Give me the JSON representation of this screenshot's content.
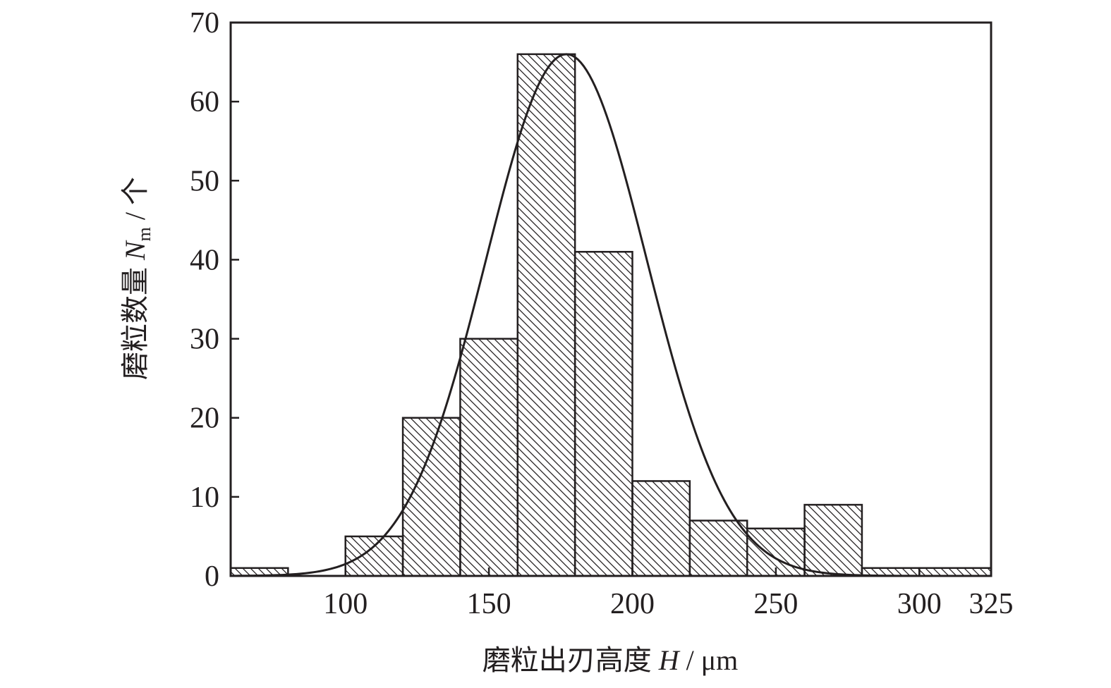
{
  "chart_data": {
    "type": "bar",
    "subtype": "histogram-with-normal-fit",
    "title": "",
    "xlabel": {
      "prefix": "磨粒出刃高度",
      "var": "H",
      "unit": " / μm"
    },
    "ylabel": {
      "prefix": "磨粒数量",
      "var": "N",
      "sub": "m",
      "unit": " / 个"
    },
    "xlim": [
      60,
      325
    ],
    "ylim": [
      0,
      70
    ],
    "x_ticks": [
      100,
      150,
      200,
      250,
      300,
      325
    ],
    "y_ticks": [
      0,
      10,
      20,
      30,
      40,
      50,
      60,
      70
    ],
    "bins": [
      {
        "from": 60,
        "to": 80,
        "count": 1
      },
      {
        "from": 80,
        "to": 100,
        "count": 0
      },
      {
        "from": 100,
        "to": 120,
        "count": 5
      },
      {
        "from": 120,
        "to": 140,
        "count": 20
      },
      {
        "from": 140,
        "to": 160,
        "count": 30
      },
      {
        "from": 160,
        "to": 180,
        "count": 66
      },
      {
        "from": 180,
        "to": 200,
        "count": 41
      },
      {
        "from": 200,
        "to": 220,
        "count": 12
      },
      {
        "from": 220,
        "to": 240,
        "count": 7
      },
      {
        "from": 240,
        "to": 260,
        "count": 6
      },
      {
        "from": 260,
        "to": 280,
        "count": 9
      },
      {
        "from": 280,
        "to": 300,
        "count": 1
      },
      {
        "from": 300,
        "to": 325,
        "count": 1
      }
    ],
    "fit_curve": {
      "type": "normal",
      "peak_x": 177,
      "peak_y": 66,
      "sigma": 28,
      "x_range": [
        60,
        300
      ]
    },
    "bar_fill": "diagonal-hatch",
    "grid": false,
    "legend": "none",
    "colors": {
      "ink": "#231f20",
      "background": "#ffffff"
    }
  }
}
